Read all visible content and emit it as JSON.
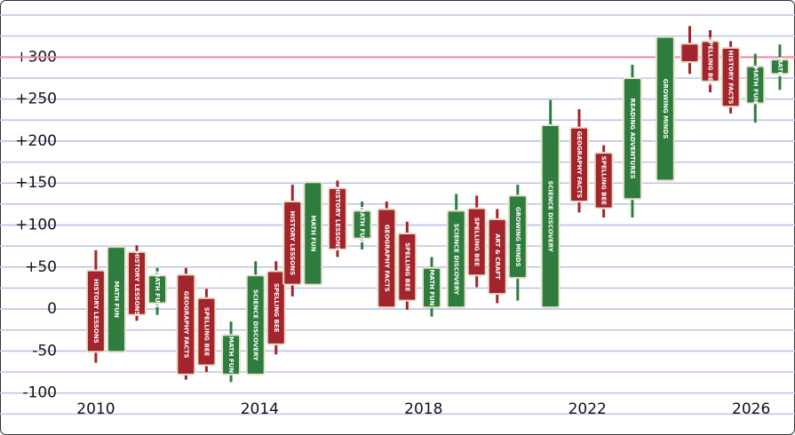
{
  "chart_data": {
    "type": "candlestick",
    "x": [
      2010.0,
      2010.5,
      2011.0,
      2011.5,
      2012.2,
      2012.7,
      2013.3,
      2013.9,
      2014.4,
      2014.8,
      2015.3,
      2015.9,
      2016.5,
      2017.1,
      2017.6,
      2018.2,
      2018.8,
      2019.3,
      2019.8,
      2020.3,
      2021.1,
      2021.8,
      2022.4,
      2023.1,
      2023.9,
      2024.5,
      2025.0,
      2025.5,
      2026.1,
      2026.7
    ],
    "open": [
      46,
      -51,
      68,
      7,
      41,
      13,
      -78,
      -78,
      45,
      128,
      29,
      144,
      84,
      119,
      90,
      2,
      2,
      120,
      107,
      37,
      2,
      216,
      186,
      131,
      153,
      316,
      319,
      311,
      245,
      280
    ],
    "high": [
      70,
      74,
      76,
      49,
      49,
      24,
      -15,
      57,
      57,
      148,
      151,
      153,
      128,
      128,
      104,
      62,
      137,
      135,
      119,
      148,
      249,
      238,
      195,
      291,
      324,
      337,
      332,
      319,
      304,
      315
    ],
    "low": [
      -64,
      -51,
      -14,
      -7,
      -84,
      -75,
      -87,
      -78,
      -54,
      15,
      29,
      62,
      71,
      2,
      -1,
      -9,
      2,
      26,
      7,
      10,
      2,
      115,
      109,
      109,
      153,
      280,
      258,
      233,
      222,
      261
    ],
    "close": [
      -51,
      74,
      -7,
      40,
      -78,
      -67,
      -31,
      40,
      -42,
      29,
      151,
      71,
      117,
      2,
      10,
      49,
      117,
      40,
      18,
      135,
      219,
      128,
      120,
      275,
      324,
      294,
      271,
      241,
      289,
      297
    ],
    "labels": [
      "HISTORY LESSONS",
      "MATH FUN",
      "HISTORY LESSONS",
      "MATH FUN",
      "GEOGRAPHY FACTS",
      "SPELLING BEE",
      "MATH FUN",
      "SCIENCE DISCOVERY",
      "SPELLING BEE",
      "HISTORY LESSONS",
      "MATH FUN",
      "HISTORY LESSONS",
      "MATH FUN",
      "GEOGRAPHY FACTS",
      "SPELLING BEE",
      "MATH FUN",
      "SCIENCE DISCOVERY",
      "SPELLING BEE",
      "ART & CRAFT",
      "GROWING MINDS",
      "SCIENCE DISCOVERY",
      "GEOGRAPHY FACTS",
      "SPELLING BEE",
      "READING ADVENTURES",
      "GROWING MINDS",
      null,
      "SPELLING BEE",
      "HISTORY FACTS",
      "MATH FUN",
      "MATH"
    ],
    "up_color": "#2f7d3e",
    "down_color": "#a3242b",
    "xlim": [
      2007.66,
      2027.07
    ],
    "xticks": [
      2010,
      2014,
      2018,
      2022,
      2026
    ],
    "ylim": [
      -150,
      368
    ],
    "yticks": [
      {
        "value": -100,
        "label": "-100"
      },
      {
        "value": -50,
        "label": "-50"
      },
      0,
      {
        "value": 50,
        "label": "+50"
      },
      {
        "value": 100,
        "label": "+100"
      },
      {
        "value": 150,
        "label": "+150"
      },
      {
        "value": 200,
        "label": "+200"
      },
      {
        "value": 250,
        "label": "+250"
      },
      {
        "value": 300,
        "label": "+300"
      }
    ],
    "grid_lines": [
      -125,
      -100,
      -75,
      -50,
      -25,
      0,
      25,
      50,
      75,
      100,
      125,
      150,
      175,
      200,
      225,
      250,
      275,
      325,
      350
    ],
    "grid_color": "#b9c6e6",
    "reference_line": 300,
    "reference_color": "#e98bab"
  }
}
